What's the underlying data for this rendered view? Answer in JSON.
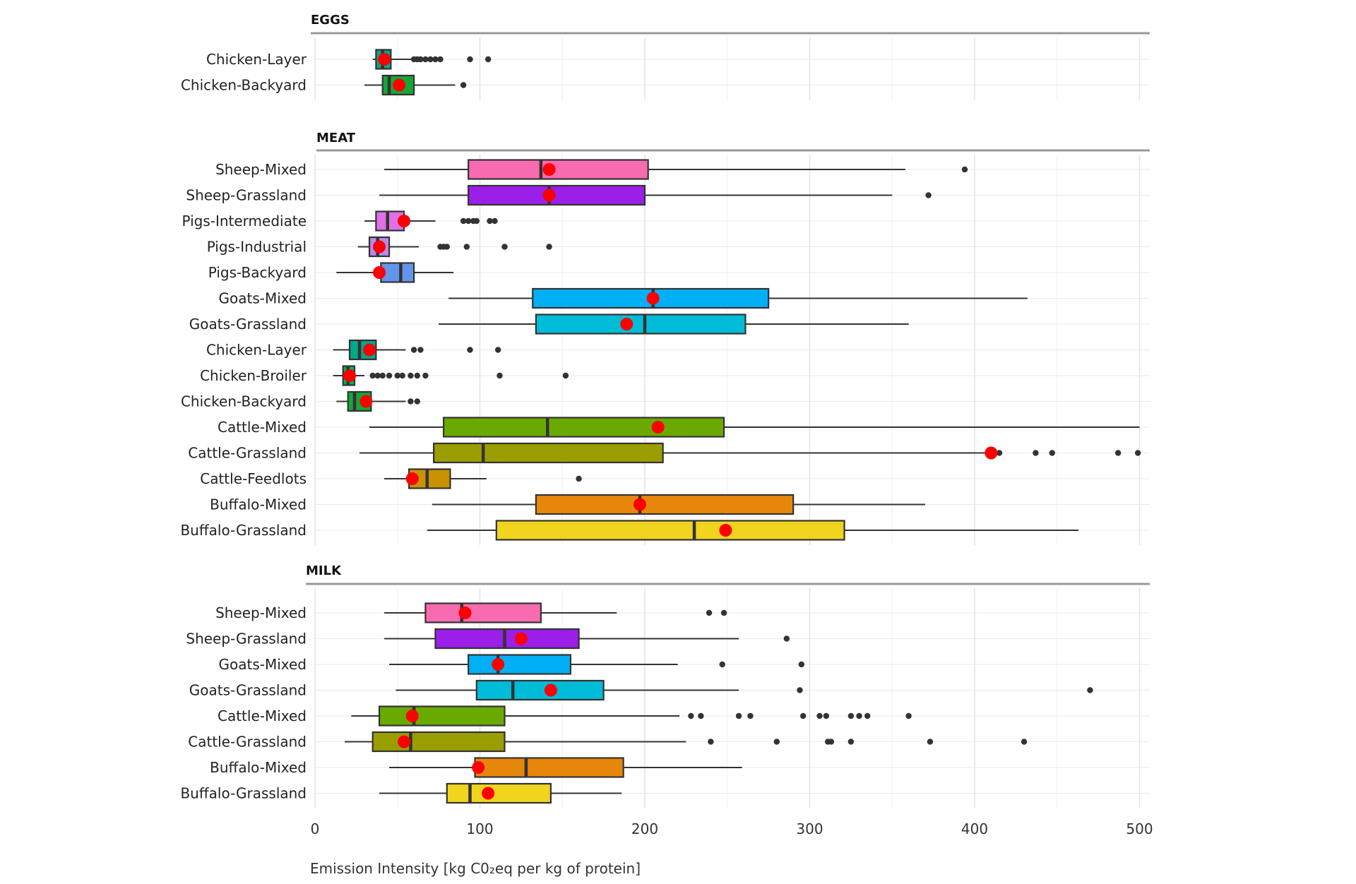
{
  "chart_data": {
    "type": "boxplot",
    "xlabel": "Emission Intensity [kg C0₂eq per kg of protein]",
    "xlim": [
      0,
      500
    ],
    "xticks": [
      0,
      100,
      200,
      300,
      400,
      500
    ],
    "colors": {
      "Sheep-Mixed": "#f96bb0",
      "Sheep-Grassland": "#9b1fe8",
      "Pigs-Intermediate": "#e070e6",
      "Pigs-Industrial": "#b88ae8",
      "Pigs-Backyard": "#6495ed",
      "Goats-Mixed": "#00b0f6",
      "Goats-Grassland": "#00bcd8",
      "Chicken-Layer": "#00a88a",
      "Chicken-Broiler": "#00b15a",
      "Chicken-Backyard": "#16a637",
      "Cattle-Mixed": "#6aaa00",
      "Cattle-Grassland": "#9a9e00",
      "Cattle-Feedlots": "#c99200",
      "Buffalo-Mixed": "#e6860a",
      "Buffalo-Grassland": "#f0d41e",
      "mean_point": "#ff0000"
    },
    "panels": [
      {
        "title": "EGGS",
        "series": [
          {
            "name": "Chicken-Layer",
            "whisker_low": 35,
            "q1": 37,
            "median": 41,
            "q3": 46,
            "whisker_high": 60,
            "mean": 42,
            "outliers": [
              60,
              62,
              64,
              67,
              70,
              73,
              76,
              94,
              105
            ]
          },
          {
            "name": "Chicken-Backyard",
            "whisker_low": 30,
            "q1": 41,
            "median": 45,
            "q3": 60,
            "whisker_high": 85,
            "mean": 51,
            "outliers": [
              90
            ]
          }
        ]
      },
      {
        "title": "MEAT",
        "series": [
          {
            "name": "Sheep-Mixed",
            "whisker_low": 42,
            "q1": 93,
            "median": 137,
            "q3": 202,
            "whisker_high": 358,
            "mean": 142,
            "outliers": [
              394
            ]
          },
          {
            "name": "Sheep-Grassland",
            "whisker_low": 39,
            "q1": 93,
            "median": 142,
            "q3": 200,
            "whisker_high": 350,
            "mean": 142,
            "outliers": [
              372
            ]
          },
          {
            "name": "Pigs-Intermediate",
            "whisker_low": 30,
            "q1": 37,
            "median": 44,
            "q3": 54,
            "whisker_high": 73,
            "mean": 54,
            "outliers": [
              90,
              93,
              96,
              98,
              106,
              109
            ]
          },
          {
            "name": "Pigs-Industrial",
            "whisker_low": 26,
            "q1": 33,
            "median": 38,
            "q3": 45,
            "whisker_high": 63,
            "mean": 39,
            "outliers": [
              76,
              78,
              80,
              92,
              115,
              142
            ]
          },
          {
            "name": "Pigs-Backyard",
            "whisker_low": 13,
            "q1": 40,
            "median": 52,
            "q3": 60,
            "whisker_high": 84,
            "mean": 39,
            "outliers": []
          },
          {
            "name": "Goats-Mixed",
            "whisker_low": 81,
            "q1": 132,
            "median": 205,
            "q3": 275,
            "whisker_high": 432,
            "mean": 205,
            "outliers": []
          },
          {
            "name": "Goats-Grassland",
            "whisker_low": 75,
            "q1": 134,
            "median": 200,
            "q3": 261,
            "whisker_high": 360,
            "mean": 189,
            "outliers": []
          },
          {
            "name": "Chicken-Layer",
            "whisker_low": 11,
            "q1": 21,
            "median": 27,
            "q3": 37,
            "whisker_high": 55,
            "mean": 33,
            "outliers": [
              60,
              64,
              94,
              111
            ]
          },
          {
            "name": "Chicken-Broiler",
            "whisker_low": 11,
            "q1": 17,
            "median": 20,
            "q3": 24,
            "whisker_high": 30,
            "mean": 21,
            "outliers": [
              35,
              38,
              41,
              45,
              50,
              53,
              58,
              62,
              67,
              112,
              152
            ]
          },
          {
            "name": "Chicken-Backyard",
            "whisker_low": 13,
            "q1": 20,
            "median": 24,
            "q3": 34,
            "whisker_high": 55,
            "mean": 31,
            "outliers": [
              58,
              62
            ]
          },
          {
            "name": "Cattle-Mixed",
            "whisker_low": 33,
            "q1": 78,
            "median": 141,
            "q3": 248,
            "whisker_high": 500,
            "mean": 208,
            "outliers": []
          },
          {
            "name": "Cattle-Grassland",
            "whisker_low": 27,
            "q1": 72,
            "median": 102,
            "q3": 211,
            "whisker_high": 410,
            "mean": 410,
            "outliers": [
              415,
              437,
              447,
              487,
              499
            ]
          },
          {
            "name": "Cattle-Feedlots",
            "whisker_low": 42,
            "q1": 57,
            "median": 68,
            "q3": 82,
            "whisker_high": 104,
            "mean": 59,
            "outliers": [
              160
            ]
          },
          {
            "name": "Buffalo-Mixed",
            "whisker_low": 71,
            "q1": 134,
            "median": 197,
            "q3": 290,
            "whisker_high": 370,
            "mean": 197,
            "outliers": []
          },
          {
            "name": "Buffalo-Grassland",
            "whisker_low": 68,
            "q1": 110,
            "median": 230,
            "q3": 321,
            "whisker_high": 463,
            "mean": 249,
            "outliers": []
          }
        ]
      },
      {
        "title": "MILK",
        "series": [
          {
            "name": "Sheep-Mixed",
            "whisker_low": 42,
            "q1": 67,
            "median": 89,
            "q3": 137,
            "whisker_high": 183,
            "mean": 91,
            "outliers": [
              239,
              248
            ]
          },
          {
            "name": "Sheep-Grassland",
            "whisker_low": 42,
            "q1": 73,
            "median": 115,
            "q3": 160,
            "whisker_high": 257,
            "mean": 125,
            "outliers": [
              286
            ]
          },
          {
            "name": "Goats-Mixed",
            "whisker_low": 45,
            "q1": 93,
            "median": 111,
            "q3": 155,
            "whisker_high": 220,
            "mean": 111,
            "outliers": [
              247,
              295
            ]
          },
          {
            "name": "Goats-Grassland",
            "whisker_low": 49,
            "q1": 98,
            "median": 120,
            "q3": 175,
            "whisker_high": 257,
            "mean": 143,
            "outliers": [
              294,
              470
            ]
          },
          {
            "name": "Cattle-Mixed",
            "whisker_low": 22,
            "q1": 39,
            "median": 60,
            "q3": 115,
            "whisker_high": 221,
            "mean": 59,
            "outliers": [
              228,
              234,
              257,
              264,
              296,
              306,
              310,
              325,
              330,
              335,
              360
            ]
          },
          {
            "name": "Cattle-Grassland",
            "whisker_low": 18,
            "q1": 35,
            "median": 58,
            "q3": 115,
            "whisker_high": 225,
            "mean": 54,
            "outliers": [
              240,
              280,
              311,
              313,
              325,
              373,
              430
            ]
          },
          {
            "name": "Buffalo-Mixed",
            "whisker_low": 45,
            "q1": 97,
            "median": 128,
            "q3": 187,
            "whisker_high": 259,
            "mean": 99,
            "outliers": []
          },
          {
            "name": "Buffalo-Grassland",
            "whisker_low": 39,
            "q1": 80,
            "median": 94,
            "q3": 143,
            "whisker_high": 186,
            "mean": 105,
            "outliers": []
          }
        ]
      }
    ]
  }
}
